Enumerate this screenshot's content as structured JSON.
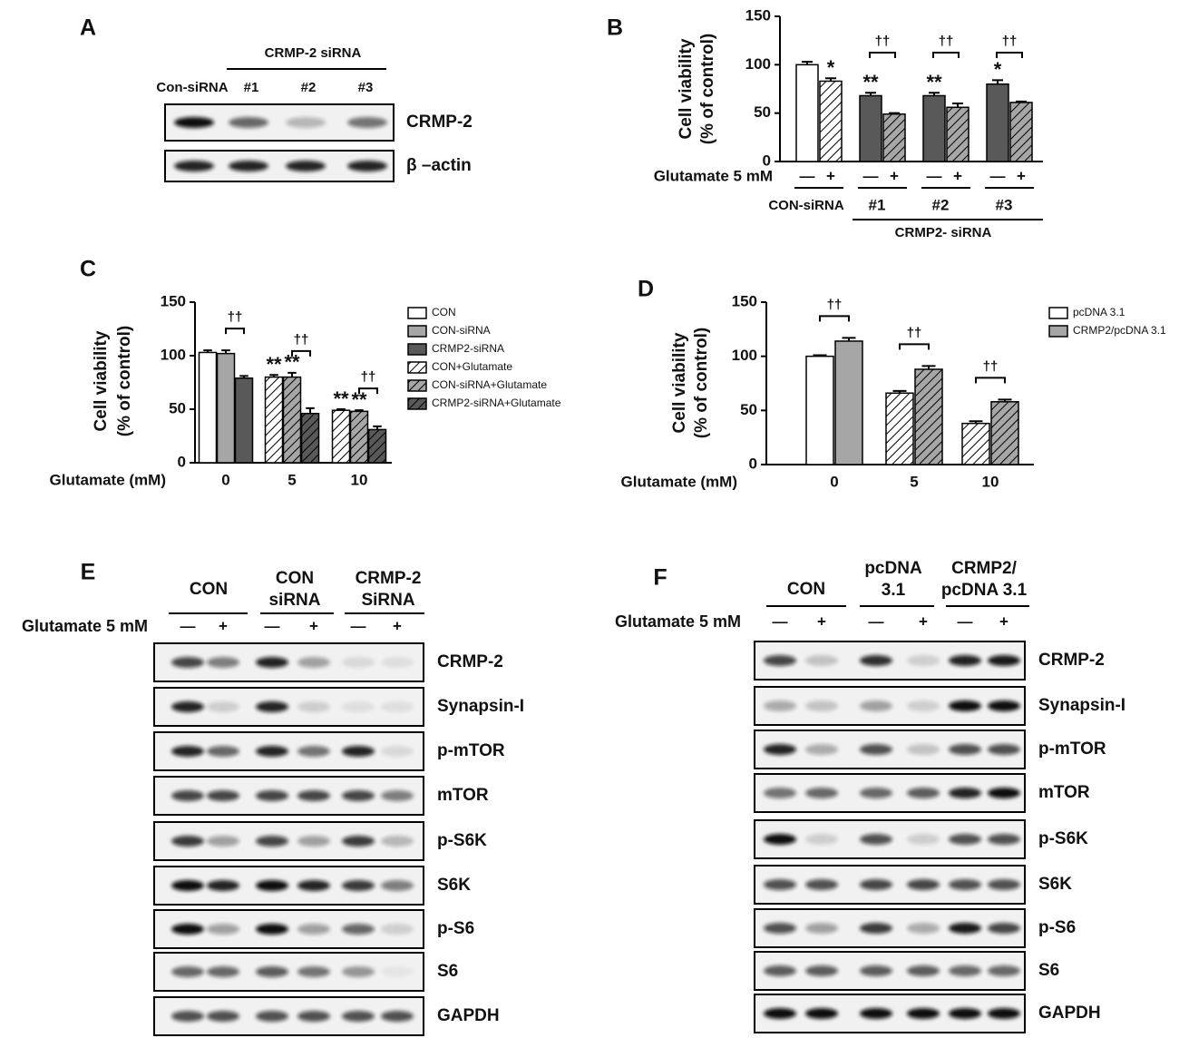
{
  "chart_data": [
    {
      "type": "bar",
      "panel": "B",
      "ylabel": [
        "Cell viability",
        "(% of control)"
      ],
      "ylim": [
        0,
        150
      ],
      "yticks": [
        0,
        50,
        100,
        150
      ],
      "categories": [
        "—",
        "+",
        "—",
        "+",
        "—",
        "+",
        "—",
        "+"
      ],
      "values": [
        100,
        83,
        68,
        49,
        68,
        56,
        80,
        61
      ],
      "errors": [
        3,
        3,
        3,
        1,
        3,
        4,
        4,
        1
      ],
      "colors": [
        "#ffffff",
        "#ffffff",
        "#595959",
        "#a6a6a6",
        "#595959",
        "#a6a6a6",
        "#595959",
        "#a6a6a6"
      ],
      "hatched": [
        false,
        true,
        false,
        true,
        false,
        true,
        false,
        true
      ],
      "sig_labels": [
        null,
        "*",
        "**",
        null,
        "**",
        null,
        "*",
        null
      ],
      "x_row_label": "Glutamate 5 mM",
      "groups": [
        "CON-siRNA",
        "#1",
        "#2",
        "#3"
      ],
      "pair_labels": [
        null,
        "††",
        "††",
        "††"
      ],
      "group_title": "CRMP2- siRNA"
    },
    {
      "type": "grouped_bar",
      "panel": "C",
      "ylabel": [
        "Cell viability",
        "(% of control)"
      ],
      "ylim": [
        0,
        150
      ],
      "yticks": [
        0,
        50,
        100,
        150
      ],
      "xlabel": "Glutamate (mM)",
      "categories": [
        "0",
        "5",
        "10"
      ],
      "series": [
        {
          "name": "CON",
          "color": "#ffffff",
          "hatched": false,
          "values": [
            103,
            null,
            null
          ],
          "errors": [
            2,
            null,
            null
          ],
          "sig_labels": [
            null,
            null,
            null
          ]
        },
        {
          "name": "CON-siRNA",
          "color": "#a6a6a6",
          "hatched": false,
          "values": [
            102,
            null,
            null
          ],
          "errors": [
            3,
            null,
            null
          ],
          "sig_labels": [
            null,
            null,
            null
          ]
        },
        {
          "name": "CRMP2-siRNA",
          "color": "#595959",
          "hatched": false,
          "values": [
            79,
            null,
            null
          ],
          "errors": [
            2,
            null,
            null
          ],
          "sig_labels": [
            null,
            null,
            null
          ]
        },
        {
          "name": "CON+Glutamate",
          "color": "#ffffff",
          "hatched": true,
          "values": [
            null,
            80,
            49
          ],
          "errors": [
            null,
            2,
            1
          ],
          "sig_labels": [
            null,
            "**",
            "**"
          ]
        },
        {
          "name": "CON-siRNA+Glutamate",
          "color": "#a6a6a6",
          "hatched": true,
          "values": [
            null,
            80,
            48
          ],
          "errors": [
            null,
            4,
            1
          ],
          "sig_labels": [
            null,
            "**",
            "**"
          ]
        },
        {
          "name": "CRMP2-siRNA+Glutamate",
          "color": "#595959",
          "hatched": true,
          "values": [
            null,
            46,
            31
          ],
          "errors": [
            null,
            5,
            3
          ],
          "sig_labels": [
            null,
            null,
            null
          ]
        }
      ],
      "pair_labels": [
        "††",
        "††",
        "††"
      ]
    },
    {
      "type": "grouped_bar",
      "panel": "D",
      "ylabel": [
        "Cell viability",
        "(% of control)"
      ],
      "ylim": [
        0,
        150
      ],
      "yticks": [
        0,
        50,
        100,
        150
      ],
      "xlabel": "Glutamate (mM)",
      "categories": [
        "0",
        "5",
        "10"
      ],
      "hatched_categories": [
        false,
        true,
        true
      ],
      "series": [
        {
          "name": "pcDNA 3.1",
          "color": "#ffffff",
          "values": [
            100,
            66,
            38
          ],
          "errors": [
            1,
            2,
            2
          ]
        },
        {
          "name": "CRMP2/pcDNA 3.1",
          "color": "#a6a6a6",
          "values": [
            114,
            88,
            58
          ],
          "errors": [
            3,
            3,
            2
          ]
        }
      ],
      "pair_labels": [
        "††",
        "††",
        "††"
      ]
    }
  ],
  "panel_a": {
    "label": "A",
    "group_title": "CRMP-2 siRNA",
    "lanes": [
      "Con-siRNA",
      "#1",
      "#2",
      "#3"
    ],
    "rows": [
      "CRMP-2",
      "β –actin"
    ]
  },
  "panel_e": {
    "label": "E",
    "groups": [
      [
        "CON"
      ],
      [
        "CON",
        "siRNA"
      ],
      [
        "CRMP-2",
        "SiRNA"
      ]
    ],
    "row_label": "Glutamate 5 mM",
    "lanes": [
      "—",
      "+",
      "—",
      "+",
      "—",
      "+"
    ],
    "rows": [
      "CRMP-2",
      "Synapsin-I",
      "p-mTOR",
      "mTOR",
      "p-S6K",
      "S6K",
      "p-S6",
      "S6",
      "GAPDH"
    ]
  },
  "panel_f": {
    "label": "F",
    "groups": [
      [
        "CON"
      ],
      [
        "pcDNA",
        "3.1"
      ],
      [
        "CRMP2/",
        "pcDNA 3.1"
      ]
    ],
    "row_label": "Glutamate 5 mM",
    "lanes": [
      "—",
      "+",
      "—",
      "+",
      "—",
      "+"
    ],
    "rows": [
      "CRMP-2",
      "Synapsin-I",
      "p-mTOR",
      "mTOR",
      "p-S6K",
      "S6K",
      "p-S6",
      "S6",
      "GAPDH"
    ]
  }
}
